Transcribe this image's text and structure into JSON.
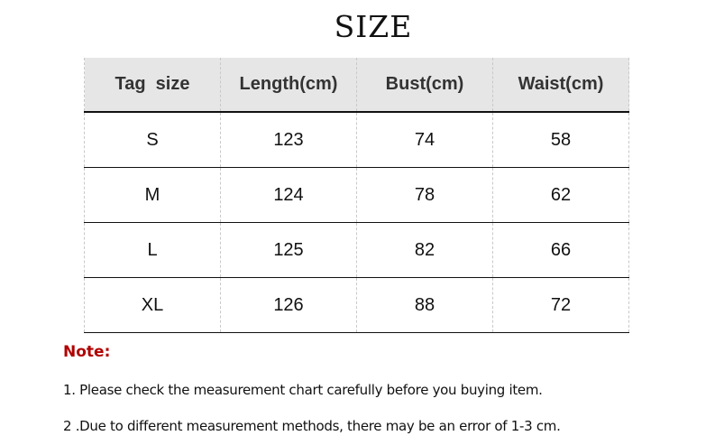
{
  "title": "SIZE",
  "table": {
    "headers": [
      "Tag  size",
      "Length(cm)",
      "Bust(cm)",
      "Waist(cm)"
    ],
    "rows": [
      [
        "S",
        "123",
        "74",
        "58"
      ],
      [
        "M",
        "124",
        "78",
        "62"
      ],
      [
        "L",
        "125",
        "82",
        "66"
      ],
      [
        "XL",
        "126",
        "88",
        "72"
      ]
    ]
  },
  "notes": {
    "label": "Note:",
    "items": [
      "1. Please check the measurement chart carefully before you buying item.",
      "2 .Due to different measurement methods, there may be an error of 1-3 cm."
    ]
  }
}
